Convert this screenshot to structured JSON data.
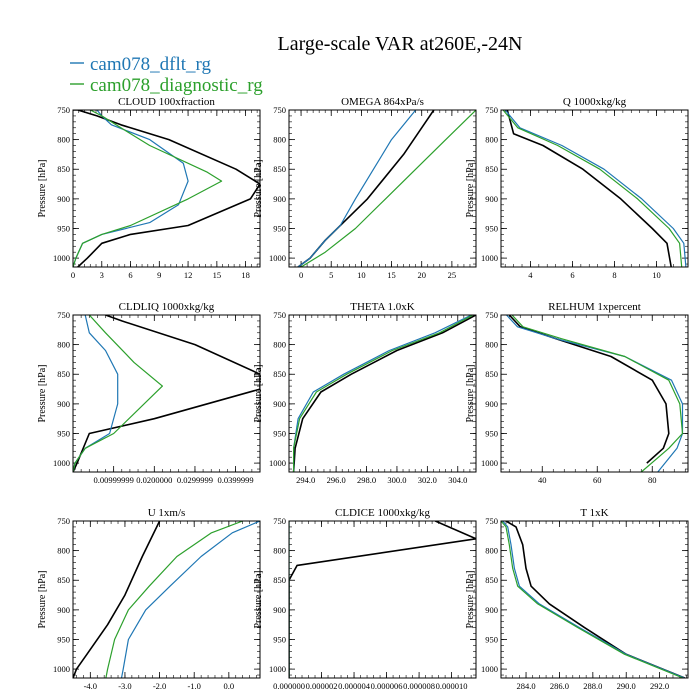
{
  "figure": {
    "title": "Large-scale VAR at260E,-24N",
    "legend": [
      {
        "label": "cam078_dflt_rg",
        "color": "#1f77b4"
      },
      {
        "label": "cam078_diagnostic_rg",
        "color": "#2ca02c"
      }
    ]
  },
  "chart_data": [
    {
      "type": "line",
      "title": "CLOUD  100xfraction",
      "ylabel": "Pressure [hPa]",
      "xlim": [
        0,
        19.5
      ],
      "ylim": [
        1015,
        750
      ],
      "xticks": [
        0,
        3,
        6,
        9,
        12,
        15,
        18
      ],
      "xtick_labels": [
        "0",
        "3",
        "6",
        "9",
        "12",
        "15",
        "18"
      ],
      "yticks": [
        750,
        800,
        850,
        900,
        950,
        1000
      ],
      "ytick_labels": [
        "750",
        "800",
        "850",
        "900",
        "950",
        "1000"
      ],
      "series": [
        {
          "color": "#000000",
          "x": [
            0.5,
            1.5,
            3,
            6,
            12,
            18.5,
            19.5,
            17,
            10,
            5,
            2.5,
            0.5,
            0
          ],
          "y": [
            1015,
            1000,
            975,
            960,
            945,
            900,
            875,
            850,
            800,
            775,
            760,
            750,
            750
          ]
        },
        {
          "color": "#1f77b4",
          "x": [
            0,
            0.3,
            1,
            3,
            8,
            11,
            12,
            11.5,
            8,
            4,
            3,
            2.5
          ],
          "y": [
            1015,
            1000,
            975,
            960,
            940,
            910,
            870,
            840,
            800,
            775,
            760,
            750
          ]
        },
        {
          "color": "#2ca02c",
          "x": [
            0,
            0.3,
            1,
            3,
            6,
            12,
            15.5,
            14,
            8,
            5,
            3,
            1.8
          ],
          "y": [
            1015,
            1000,
            975,
            960,
            945,
            900,
            870,
            855,
            810,
            780,
            760,
            750
          ]
        }
      ]
    },
    {
      "type": "line",
      "title": "OMEGA  864xPa/s",
      "ylabel": "",
      "xlim": [
        -2,
        29
      ],
      "ylim": [
        1015,
        750
      ],
      "xticks": [
        0,
        5,
        10,
        15,
        20,
        25
      ],
      "xtick_labels": [
        "0",
        "5",
        "10",
        "15",
        "20",
        "25"
      ],
      "yticks": [
        750,
        800,
        850,
        900,
        950,
        1000
      ],
      "ytick_labels": [
        "750",
        "800",
        "850",
        "900",
        "950",
        "1000"
      ],
      "series": [
        {
          "color": "#000000",
          "x": [
            -0.5,
            1.5,
            4,
            7,
            11,
            17,
            20,
            22
          ],
          "y": [
            1015,
            1000,
            970,
            940,
            900,
            825,
            780,
            750
          ]
        },
        {
          "color": "#1f77b4",
          "x": [
            -0.5,
            1.5,
            4,
            6.5,
            9,
            12,
            15,
            19
          ],
          "y": [
            1015,
            1000,
            970,
            945,
            900,
            850,
            800,
            750
          ]
        },
        {
          "color": "#2ca02c",
          "x": [
            0,
            4,
            9,
            14,
            19,
            24,
            29
          ],
          "y": [
            1015,
            990,
            950,
            900,
            850,
            800,
            750
          ]
        }
      ]
    },
    {
      "type": "line",
      "title": "Q  1000xkg/kg",
      "ylabel": "",
      "xlim": [
        2.6,
        11.5
      ],
      "ylim": [
        1015,
        750
      ],
      "xticks": [
        4,
        6,
        8,
        10
      ],
      "xtick_labels": [
        "4",
        "6",
        "8",
        "10"
      ],
      "yticks": [
        750,
        800,
        850,
        900,
        950,
        1000
      ],
      "ytick_labels": [
        "750",
        "800",
        "850",
        "900",
        "950",
        "1000"
      ],
      "series": [
        {
          "color": "#000000",
          "x": [
            10.7,
            10.5,
            9.8,
            8.3,
            6.5,
            4.6,
            3.2,
            2.9
          ],
          "y": [
            1015,
            975,
            950,
            900,
            850,
            810,
            790,
            750
          ]
        },
        {
          "color": "#1f77b4",
          "x": [
            11.4,
            11.3,
            10.8,
            9.3,
            7.5,
            5.5,
            3.5,
            2.8
          ],
          "y": [
            1015,
            975,
            950,
            900,
            850,
            810,
            780,
            750
          ]
        },
        {
          "color": "#2ca02c",
          "x": [
            11.2,
            11.1,
            10.6,
            9.1,
            7.3,
            5.3,
            3.4,
            2.7
          ],
          "y": [
            1015,
            975,
            950,
            900,
            850,
            810,
            780,
            750
          ]
        }
      ]
    },
    {
      "type": "line",
      "title": "CLDLIQ  1000xkg/kg",
      "ylabel": "",
      "xlim": [
        0,
        0.046
      ],
      "ylim": [
        1015,
        750
      ],
      "xticks": [
        0.01,
        0.02,
        0.03,
        0.04
      ],
      "xtick_labels": [
        "0.00999999",
        "0.0200000",
        "0.0299999",
        "0.0399999"
      ],
      "yticks": [
        750,
        800,
        850,
        900,
        950,
        1000
      ],
      "ytick_labels": [
        "750",
        "800",
        "850",
        "900",
        "950",
        "1000"
      ],
      "series": [
        {
          "color": "#000000",
          "x": [
            0,
            0.001,
            0.004,
            0.02,
            0.046,
            0.046,
            0.03,
            0.012,
            0.008
          ],
          "y": [
            1015,
            1000,
            950,
            925,
            875,
            850,
            800,
            760,
            750
          ]
        },
        {
          "color": "#1f77b4",
          "x": [
            0,
            0.0005,
            0.003,
            0.009,
            0.011,
            0.011,
            0.008,
            0.004,
            0.003
          ],
          "y": [
            1015,
            1000,
            975,
            950,
            900,
            850,
            810,
            780,
            750
          ]
        },
        {
          "color": "#2ca02c",
          "x": [
            0,
            0.0005,
            0.003,
            0.01,
            0.022,
            0.015,
            0.008,
            0.004
          ],
          "y": [
            1015,
            1000,
            975,
            950,
            870,
            830,
            780,
            750
          ]
        }
      ]
    },
    {
      "type": "line",
      "title": "THETA  1.0xK",
      "ylabel": "",
      "xlim": [
        292.9,
        305.2
      ],
      "ylim": [
        1015,
        750
      ],
      "xticks": [
        294,
        296,
        298,
        300,
        302,
        304
      ],
      "xtick_labels": [
        "294.0",
        "296.0",
        "298.0",
        "300.0",
        "302.0",
        "304.0"
      ],
      "yticks": [
        750,
        800,
        850,
        900,
        950,
        1000
      ],
      "ytick_labels": [
        "750",
        "800",
        "850",
        "900",
        "950",
        "1000"
      ],
      "series": [
        {
          "color": "#000000",
          "x": [
            293.2,
            293.3,
            293.8,
            295,
            297,
            300,
            303,
            305.2
          ],
          "y": [
            1015,
            975,
            925,
            880,
            850,
            810,
            780,
            750
          ]
        },
        {
          "color": "#1f77b4",
          "x": [
            293.2,
            293.2,
            293.5,
            294.5,
            296.5,
            299.5,
            302.5,
            304.9
          ],
          "y": [
            1015,
            975,
            925,
            880,
            850,
            810,
            780,
            750
          ]
        },
        {
          "color": "#2ca02c",
          "x": [
            293.2,
            293.2,
            293.6,
            294.7,
            296.7,
            299.7,
            302.8,
            305
          ],
          "y": [
            1015,
            975,
            925,
            880,
            850,
            810,
            780,
            750
          ]
        }
      ]
    },
    {
      "type": "line",
      "title": "RELHUM  1xpercent",
      "ylabel": "",
      "xlim": [
        25,
        93
      ],
      "ylim": [
        1015,
        750
      ],
      "xticks": [
        40,
        60,
        80
      ],
      "xtick_labels": [
        "40",
        "60",
        "80"
      ],
      "yticks": [
        750,
        800,
        850,
        900,
        950,
        1000
      ],
      "ytick_labels": [
        "750",
        "800",
        "850",
        "900",
        "950",
        "1000"
      ],
      "series": [
        {
          "color": "#000000",
          "x": [
            78,
            84,
            86,
            85,
            80,
            65,
            45,
            32,
            28
          ],
          "y": [
            1000,
            975,
            950,
            900,
            860,
            820,
            790,
            770,
            750
          ]
        },
        {
          "color": "#1f77b4",
          "x": [
            82,
            89,
            91,
            91,
            87,
            70,
            45,
            31,
            27
          ],
          "y": [
            1015,
            975,
            950,
            900,
            860,
            820,
            790,
            770,
            750
          ]
        },
        {
          "color": "#2ca02c",
          "x": [
            76,
            86,
            91,
            90,
            86,
            70,
            47,
            33,
            29
          ],
          "y": [
            1015,
            975,
            950,
            900,
            860,
            820,
            790,
            770,
            750
          ]
        }
      ]
    },
    {
      "type": "line",
      "title": "U  1xm/s",
      "ylabel": "",
      "xlim": [
        -4.5,
        0.9
      ],
      "ylim": [
        1015,
        750
      ],
      "xticks": [
        -4,
        -3,
        -2,
        -1,
        0
      ],
      "xtick_labels": [
        "-4.0",
        "-3.0",
        "-2.0",
        "-1.0",
        "0.0"
      ],
      "yticks": [
        750,
        800,
        850,
        900,
        950,
        1000
      ],
      "ytick_labels": [
        "750",
        "800",
        "850",
        "900",
        "950",
        "1000"
      ],
      "series": [
        {
          "color": "#000000",
          "x": [
            -4.5,
            -4.4,
            -4.1,
            -3.5,
            -3.0,
            -2.5,
            -2.0
          ],
          "y": [
            1015,
            1000,
            975,
            925,
            875,
            810,
            750
          ]
        },
        {
          "color": "#1f77b4",
          "x": [
            -3.1,
            -3.05,
            -2.9,
            -2.4,
            -1.7,
            -0.8,
            0.1,
            0.9
          ],
          "y": [
            1015,
            1000,
            950,
            900,
            860,
            810,
            770,
            750
          ]
        },
        {
          "color": "#2ca02c",
          "x": [
            -3.55,
            -3.5,
            -3.3,
            -2.9,
            -2.3,
            -1.5,
            -0.5,
            0.4
          ],
          "y": [
            1015,
            1000,
            950,
            900,
            860,
            810,
            770,
            750
          ]
        }
      ]
    },
    {
      "type": "line",
      "title": "CLDICE  1000xkg/kg",
      "ylabel": "",
      "xlim": [
        0,
        1.15e-05
      ],
      "ylim": [
        1015,
        750
      ],
      "xticks": [
        0,
        2e-06,
        4e-06,
        6e-06,
        8e-06,
        1e-05
      ],
      "xtick_labels": [
        "0.000000",
        "0.000002",
        "0.000004",
        "0.000006",
        "0.000008",
        "0.000010"
      ],
      "yticks": [
        750,
        800,
        850,
        900,
        950,
        1000
      ],
      "ytick_labels": [
        "750",
        "800",
        "850",
        "900",
        "950",
        "1000"
      ],
      "series": [
        {
          "color": "#000000",
          "x": [
            0,
            0,
            5e-07,
            1.15e-05,
            9e-06
          ],
          "y": [
            1015,
            850,
            825,
            780,
            750
          ]
        },
        {
          "color": "#1f77b4",
          "x": [
            0,
            0
          ],
          "y": [
            1015,
            750
          ]
        },
        {
          "color": "#2ca02c",
          "x": [
            0,
            0
          ],
          "y": [
            1015,
            750
          ]
        }
      ]
    },
    {
      "type": "line",
      "title": "T  1xK",
      "ylabel": "",
      "xlim": [
        282.5,
        293.7
      ],
      "ylim": [
        1015,
        750
      ],
      "xticks": [
        284,
        286,
        288,
        290,
        292
      ],
      "xtick_labels": [
        "284.0",
        "286.0",
        "288.0",
        "290.0",
        "292.0"
      ],
      "yticks": [
        750,
        800,
        850,
        900,
        950,
        1000
      ],
      "ytick_labels": [
        "750",
        "800",
        "850",
        "900",
        "950",
        "1000"
      ],
      "series": [
        {
          "color": "#000000",
          "x": [
            293.5,
            290,
            287.5,
            285.4,
            284.3,
            284,
            283.8,
            283.4,
            282.8
          ],
          "y": [
            1015,
            975,
            930,
            890,
            860,
            830,
            790,
            760,
            750
          ]
        },
        {
          "color": "#1f77b4",
          "x": [
            293.5,
            290,
            287.2,
            284.8,
            283.6,
            283.3,
            283.1,
            282.9,
            282.6
          ],
          "y": [
            1015,
            975,
            930,
            890,
            860,
            830,
            790,
            760,
            750
          ]
        },
        {
          "color": "#2ca02c",
          "x": [
            293.4,
            289.9,
            287.1,
            284.7,
            283.5,
            283.2,
            283.0,
            282.8,
            282.5
          ],
          "y": [
            1015,
            975,
            930,
            890,
            860,
            830,
            790,
            760,
            750
          ]
        }
      ]
    }
  ]
}
